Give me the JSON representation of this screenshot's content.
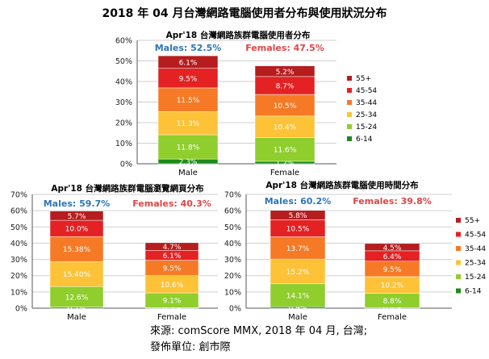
{
  "main_title": "2018 年 04 月台灣網路電腦使用者分布與使用狀況分布",
  "source_line1": "來源: comScore MMX, 2018 年 04 月, 台灣;",
  "source_line2": "發佈單位: 創市際",
  "colors": {
    "6-14": "#1e8a1e",
    "15-24": "#8fce2d",
    "25-34": "#fdc237",
    "35-44": "#f67a25",
    "45-54": "#e42123",
    "55+": "#b51d1f",
    "males_label": "#2e75b6",
    "females_label": "#e04545"
  },
  "chart_data": [
    {
      "type": "bar",
      "stacked": true,
      "title": "Apr'18 台灣網路族群電腦使用者分布",
      "categories": [
        "Male",
        "Female"
      ],
      "totals": [
        52.5,
        47.5
      ],
      "total_labels": [
        "Males: 52.5%",
        "Females: 47.5%"
      ],
      "ylim": [
        0,
        60
      ],
      "yticks": [
        "0%",
        "10%",
        "20%",
        "30%",
        "40%",
        "50%",
        "60%"
      ],
      "grid": true,
      "legend": "right",
      "series": [
        {
          "name": "6-14",
          "values": [
            2.3,
            1.2
          ],
          "labels": [
            "2.3%",
            "1.2%"
          ]
        },
        {
          "name": "15-24",
          "values": [
            11.8,
            11.6
          ],
          "labels": [
            "11.8%",
            "11.6%"
          ]
        },
        {
          "name": "25-34",
          "values": [
            11.3,
            10.4
          ],
          "labels": [
            "11.3%",
            "10.4%"
          ]
        },
        {
          "name": "35-44",
          "values": [
            11.5,
            10.5
          ],
          "labels": [
            "11.5%",
            "10.5%"
          ]
        },
        {
          "name": "45-54",
          "values": [
            9.5,
            8.7
          ],
          "labels": [
            "9.5%",
            "8.7%"
          ]
        },
        {
          "name": "55+",
          "values": [
            6.1,
            5.2
          ],
          "labels": [
            "6.1%",
            "5.2%"
          ]
        }
      ]
    },
    {
      "type": "bar",
      "stacked": true,
      "title": "Apr'18 台灣網路族群電腦瀏覽網頁分布",
      "categories": [
        "Male",
        "Female"
      ],
      "totals": [
        59.7,
        40.3
      ],
      "total_labels": [
        "Males: 59.7%",
        "Females: 40.3%"
      ],
      "ylim": [
        0,
        70
      ],
      "yticks": [
        "0%",
        "10%",
        "20%",
        "30%",
        "40%",
        "50%",
        "60%",
        "70%"
      ],
      "grid": true,
      "legend": "none",
      "series": [
        {
          "name": "6-14",
          "values": [
            0.7,
            0.3
          ],
          "labels": [
            "0.7%",
            "0.3%"
          ]
        },
        {
          "name": "15-24",
          "values": [
            12.6,
            9.1
          ],
          "labels": [
            "12.6%",
            "9.1%"
          ]
        },
        {
          "name": "25-34",
          "values": [
            15.4,
            10.6
          ],
          "labels": [
            "15.40%",
            "10.6%"
          ]
        },
        {
          "name": "35-44",
          "values": [
            15.38,
            9.5
          ],
          "labels": [
            "15.38%",
            "9.5%"
          ]
        },
        {
          "name": "45-54",
          "values": [
            10.0,
            6.1
          ],
          "labels": [
            "10.0%",
            "6.1%"
          ]
        },
        {
          "name": "55+",
          "values": [
            5.7,
            4.7
          ],
          "labels": [
            "5.7%",
            "4.7%"
          ]
        }
      ]
    },
    {
      "type": "bar",
      "stacked": true,
      "title": "Apr'18 台灣網路族群電腦使用時間分布",
      "categories": [
        "Male",
        "Female"
      ],
      "totals": [
        60.2,
        39.8
      ],
      "total_labels": [
        "Males: 60.2%",
        "Females: 39.8%"
      ],
      "ylim": [
        0,
        70
      ],
      "yticks": [
        "0%",
        "10%",
        "20%",
        "30%",
        "40%",
        "50%",
        "60%",
        "70%"
      ],
      "grid": true,
      "legend": "right",
      "series": [
        {
          "name": "6-14",
          "values": [
            0.9,
            0.4
          ],
          "labels": [
            "0.9%",
            "0.4%"
          ]
        },
        {
          "name": "15-24",
          "values": [
            14.1,
            8.8
          ],
          "labels": [
            "14.1%",
            "8.8%"
          ]
        },
        {
          "name": "25-34",
          "values": [
            15.2,
            10.2
          ],
          "labels": [
            "15.2%",
            "10.2%"
          ]
        },
        {
          "name": "35-44",
          "values": [
            13.7,
            9.5
          ],
          "labels": [
            "13.7%",
            "9.5%"
          ]
        },
        {
          "name": "45-54",
          "values": [
            10.5,
            6.4
          ],
          "labels": [
            "10.5%",
            "6.4%"
          ]
        },
        {
          "name": "55+",
          "values": [
            5.8,
            4.5
          ],
          "labels": [
            "5.8%",
            "4.5%"
          ]
        }
      ]
    }
  ]
}
